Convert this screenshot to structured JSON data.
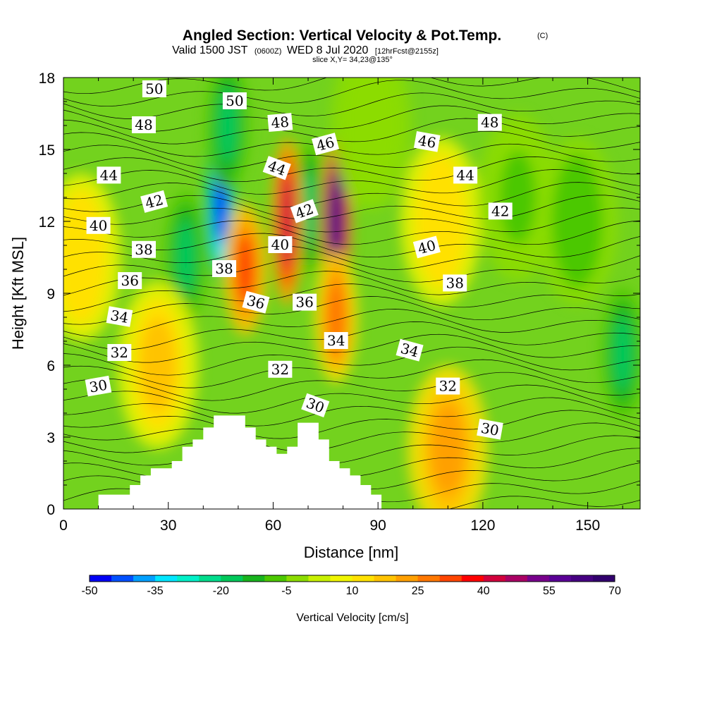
{
  "header": {
    "title": "Angled Section: Vertical Velocity & Pot.Temp.",
    "title_mark": "(C)",
    "valid_prefix": "Valid 1500 JST",
    "valid_zulu": "(0600Z)",
    "valid_date": "WED 8 Jul 2020",
    "forecast": "[12hrFcst@2155z]",
    "slice": "slice X,Y= 34,23@135°"
  },
  "chart_data": {
    "type": "heatmap",
    "xlabel": "Distance [nm]",
    "ylabel": "Height [Kft MSL]",
    "xlim": [
      0,
      165
    ],
    "ylim": [
      0,
      18
    ],
    "x_ticks": [
      "0",
      "30",
      "60",
      "90",
      "120",
      "150"
    ],
    "y_ticks": [
      "0",
      "3",
      "6",
      "9",
      "12",
      "15",
      "18"
    ],
    "colorbar": {
      "label": "Vertical Velocity [cm/s]",
      "tick_labels": [
        "-50",
        "-35",
        "-20",
        "-5",
        "10",
        "25",
        "40",
        "55",
        "70"
      ],
      "min": -50,
      "max": 70,
      "step": 5,
      "colors": [
        "#0000f5",
        "#0050ff",
        "#00a0ff",
        "#00e6ff",
        "#00f0c8",
        "#00dc8c",
        "#00c85a",
        "#18b41e",
        "#4cc800",
        "#8cdc00",
        "#c8f000",
        "#f0f500",
        "#ffe100",
        "#ffc300",
        "#ffa000",
        "#ff7800",
        "#ff4600",
        "#ff0000",
        "#d2003c",
        "#aa0064",
        "#78008c",
        "#5a0096",
        "#460082",
        "#32006e"
      ]
    },
    "velocity_features": [
      {
        "x": 45,
        "y": 13.0,
        "value": -50
      },
      {
        "x": 35,
        "y": 10.5,
        "value": -22
      },
      {
        "x": 47,
        "y": 16.0,
        "value": -20
      },
      {
        "x": 70,
        "y": 12.5,
        "value": -22
      },
      {
        "x": 64,
        "y": 12.0,
        "value": 40
      },
      {
        "x": 78,
        "y": 12.0,
        "value": 60
      },
      {
        "x": 78,
        "y": 8.0,
        "value": 25
      },
      {
        "x": 52,
        "y": 10.0,
        "value": 28
      },
      {
        "x": 27,
        "y": 6.0,
        "value": 15
      },
      {
        "x": 108,
        "y": 12.0,
        "value": 12
      },
      {
        "x": 110,
        "y": 2.5,
        "value": 18
      },
      {
        "x": 5,
        "y": 10.5,
        "value": 10
      },
      {
        "x": 130,
        "y": 13.0,
        "value": -8
      },
      {
        "x": 147,
        "y": 12.0,
        "value": -12
      },
      {
        "x": 160,
        "y": 6.5,
        "value": -20
      },
      {
        "x": 88,
        "y": 16.0,
        "value": -6
      }
    ],
    "terrain_profile": [
      [
        0,
        0
      ],
      [
        10,
        0
      ],
      [
        10,
        0.6
      ],
      [
        19,
        0.6
      ],
      [
        19,
        1.0
      ],
      [
        22,
        1.0
      ],
      [
        22,
        1.4
      ],
      [
        25,
        1.4
      ],
      [
        25,
        1.7
      ],
      [
        31,
        1.7
      ],
      [
        31,
        2.0
      ],
      [
        34,
        2.0
      ],
      [
        34,
        2.6
      ],
      [
        37,
        2.6
      ],
      [
        37,
        2.9
      ],
      [
        40,
        2.9
      ],
      [
        40,
        3.4
      ],
      [
        43,
        3.4
      ],
      [
        43,
        3.9
      ],
      [
        52,
        3.9
      ],
      [
        52,
        3.4
      ],
      [
        55,
        3.4
      ],
      [
        55,
        2.9
      ],
      [
        58,
        2.9
      ],
      [
        58,
        2.6
      ],
      [
        61,
        2.6
      ],
      [
        61,
        2.3
      ],
      [
        64,
        2.3
      ],
      [
        64,
        2.6
      ],
      [
        67,
        2.6
      ],
      [
        67,
        3.6
      ],
      [
        73,
        3.6
      ],
      [
        73,
        2.9
      ],
      [
        76,
        2.9
      ],
      [
        76,
        2.0
      ],
      [
        79,
        2.0
      ],
      [
        79,
        1.7
      ],
      [
        82,
        1.7
      ],
      [
        82,
        1.4
      ],
      [
        85,
        1.4
      ],
      [
        85,
        1.0
      ],
      [
        88,
        1.0
      ],
      [
        88,
        0.6
      ],
      [
        91,
        0.6
      ],
      [
        91,
        0
      ]
    ],
    "contour_labels": [
      {
        "text": "50",
        "x": 26,
        "y": 17.5,
        "angle": 0
      },
      {
        "text": "50",
        "x": 49,
        "y": 17.0,
        "angle": 0
      },
      {
        "text": "48",
        "x": 23,
        "y": 16.0,
        "angle": 0
      },
      {
        "text": "48",
        "x": 62,
        "y": 16.1,
        "angle": -5
      },
      {
        "text": "48",
        "x": 122,
        "y": 16.1,
        "angle": 0
      },
      {
        "text": "46",
        "x": 75,
        "y": 15.2,
        "angle": -15
      },
      {
        "text": "46",
        "x": 104,
        "y": 15.3,
        "angle": 10
      },
      {
        "text": "44",
        "x": 13,
        "y": 13.9,
        "angle": 0
      },
      {
        "text": "44",
        "x": 61,
        "y": 14.2,
        "angle": 20
      },
      {
        "text": "44",
        "x": 115,
        "y": 13.9,
        "angle": 0
      },
      {
        "text": "42",
        "x": 26,
        "y": 12.8,
        "angle": -15
      },
      {
        "text": "42",
        "x": 69,
        "y": 12.4,
        "angle": -20
      },
      {
        "text": "42",
        "x": 125,
        "y": 12.4,
        "angle": 0
      },
      {
        "text": "40",
        "x": 10,
        "y": 11.8,
        "angle": 0
      },
      {
        "text": "40",
        "x": 62,
        "y": 11.0,
        "angle": 0
      },
      {
        "text": "40",
        "x": 104,
        "y": 10.9,
        "angle": -15
      },
      {
        "text": "38",
        "x": 23,
        "y": 10.8,
        "angle": 0
      },
      {
        "text": "38",
        "x": 46,
        "y": 10.0,
        "angle": 0
      },
      {
        "text": "38",
        "x": 112,
        "y": 9.4,
        "angle": 0
      },
      {
        "text": "36",
        "x": 19,
        "y": 9.5,
        "angle": 0
      },
      {
        "text": "36",
        "x": 55,
        "y": 8.6,
        "angle": 15
      },
      {
        "text": "36",
        "x": 69,
        "y": 8.6,
        "angle": 0
      },
      {
        "text": "34",
        "x": 16,
        "y": 8.0,
        "angle": 10
      },
      {
        "text": "34",
        "x": 78,
        "y": 7.0,
        "angle": 0
      },
      {
        "text": "34",
        "x": 99,
        "y": 6.6,
        "angle": 15
      },
      {
        "text": "32",
        "x": 16,
        "y": 6.5,
        "angle": 0
      },
      {
        "text": "32",
        "x": 62,
        "y": 5.8,
        "angle": 0
      },
      {
        "text": "32",
        "x": 110,
        "y": 5.1,
        "angle": 0
      },
      {
        "text": "30",
        "x": 10,
        "y": 5.1,
        "angle": -10
      },
      {
        "text": "30",
        "x": 72,
        "y": 4.3,
        "angle": 20
      },
      {
        "text": "30",
        "x": 122,
        "y": 3.3,
        "angle": 10
      }
    ]
  }
}
